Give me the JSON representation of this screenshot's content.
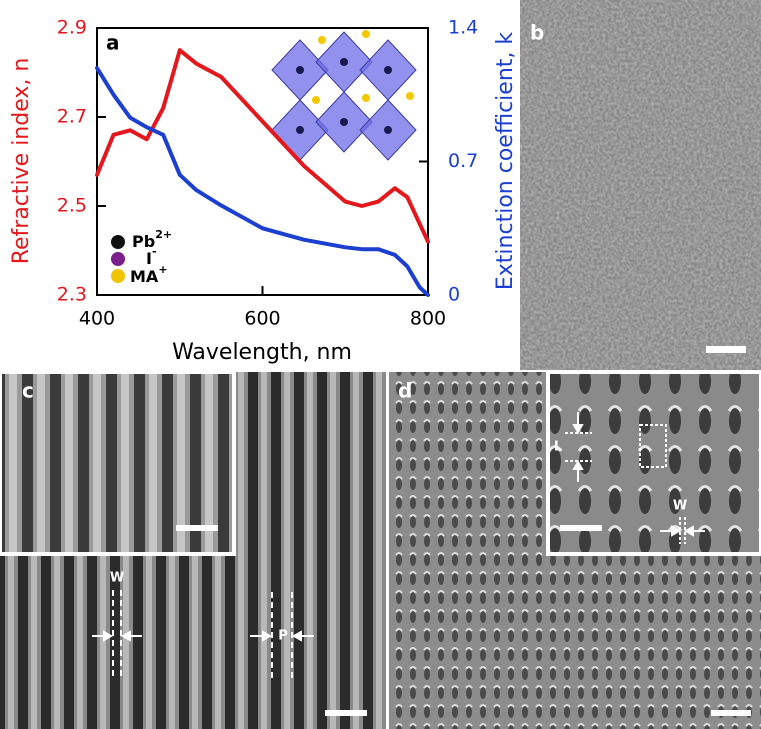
{
  "chart_data": {
    "type": "line",
    "panel_label": "a",
    "xlabel": "Wavelength, nm",
    "ylabel": "Refractive index, n",
    "y2label": "Extinction coefficient, k",
    "x": [
      400,
      420,
      440,
      460,
      480,
      500,
      520,
      550,
      600,
      650,
      700,
      720,
      740,
      760,
      775,
      790,
      800
    ],
    "xlim": [
      400,
      800
    ],
    "xticks": [
      400,
      600,
      800
    ],
    "ylim": [
      2.3,
      2.9
    ],
    "yticks": [
      2.3,
      2.5,
      2.7,
      2.9
    ],
    "y2lim": [
      0,
      1.4
    ],
    "y2ticks": [
      0,
      0.7,
      1.4
    ],
    "series": [
      {
        "color": "#e3171c",
        "values": [
          2.57,
          2.66,
          2.67,
          2.65,
          2.72,
          2.85,
          2.82,
          2.79,
          2.69,
          2.59,
          2.51,
          2.5,
          2.51,
          2.54,
          2.52,
          2.46,
          2.42
        ]
      },
      {
        "color": "#1b3fd0",
        "axis": "y2",
        "values": [
          1.19,
          1.05,
          0.93,
          0.88,
          0.84,
          0.63,
          0.55,
          0.47,
          0.35,
          0.29,
          0.25,
          0.24,
          0.24,
          0.21,
          0.15,
          0.04,
          0.0
        ]
      }
    ],
    "structure_legend": [
      {
        "label": "Pb",
        "sup": "2+"
      },
      {
        "label": "I",
        "sup": "-"
      },
      {
        "label": "MA",
        "sup": "+"
      }
    ]
  },
  "panels": {
    "b": {
      "label": "b"
    },
    "c": {
      "label": "c",
      "annotations": [
        "W",
        "P"
      ]
    },
    "d": {
      "label": "d",
      "annotations": [
        "L",
        "W"
      ]
    }
  }
}
